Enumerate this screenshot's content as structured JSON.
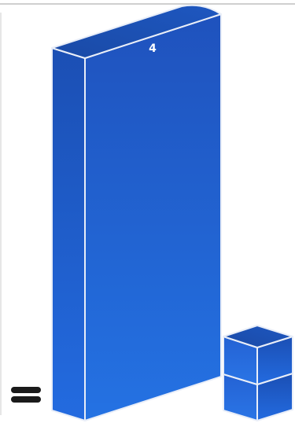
{
  "workspace": {
    "tall_block": {
      "label": "4"
    },
    "small_stack": {
      "cube_count": 2
    },
    "equals_control": {
      "icon": "equals-icon"
    }
  },
  "colors": {
    "block_front_top": "#1f52bd",
    "block_front_bottom": "#2472e3",
    "block_side": "#1c5bc8",
    "block_top": "#1b4aa8",
    "edge": "#e9eef8"
  }
}
